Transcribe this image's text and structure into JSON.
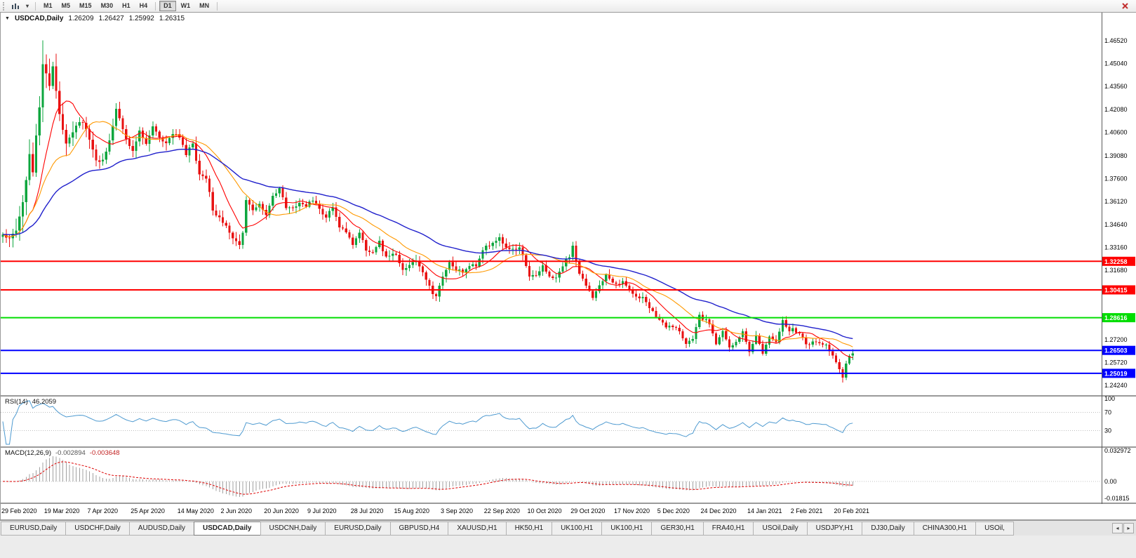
{
  "toolbar": {
    "timeframes": [
      "M1",
      "M5",
      "M15",
      "M30",
      "H1",
      "H4",
      "D1",
      "W1",
      "MN"
    ],
    "active_timeframe": "D1"
  },
  "icons": {
    "dropdown_caret": "▾",
    "tab_scroll_left": "◂",
    "tab_scroll_right": "▸",
    "title_marker": "▼"
  },
  "title": {
    "symbol": "USDCAD,Daily",
    "open": "1.26209",
    "high": "1.26427",
    "low": "1.25992",
    "close": "1.26315"
  },
  "indicators": {
    "rsi": {
      "name": "RSI(14)",
      "value": "46.2059",
      "period": 14,
      "axis_labels": [
        "100",
        "70",
        "30"
      ],
      "line_color": "#4e9ad0"
    },
    "macd": {
      "name": "MACD(12,26,9)",
      "value": "-0.002894",
      "signal_value": "-0.003648",
      "fast": 12,
      "slow": 26,
      "signal": 9,
      "axis_labels": [
        "0.032972",
        "0.00",
        "-0.01815"
      ],
      "histogram_color": "#a0a0a0",
      "signal_color": "#dd0000"
    }
  },
  "tabs": {
    "items": [
      "EURUSD,Daily",
      "USDCHF,Daily",
      "AUDUSD,Daily",
      "USDCAD,Daily",
      "USDCNH,Daily",
      "EURUSD,Daily",
      "GBPUSD,H4",
      "XAUUSD,H1",
      "HK50,H1",
      "UK100,H1",
      "UK100,H1",
      "GER30,H1",
      "FRA40,H1",
      "USOil,Daily",
      "USDJPY,H1",
      "DJ30,Daily",
      "CHINA300,H1",
      "USOil,"
    ],
    "active_index": 3
  },
  "chart_data": {
    "type": "candlestick",
    "symbol": "USDCAD",
    "timeframe": "Daily",
    "bars": 256,
    "price_axis": {
      "ticks": [
        "1.46520",
        "1.45040",
        "1.43560",
        "1.42080",
        "1.40600",
        "1.39080",
        "1.37600",
        "1.36120",
        "1.34640",
        "1.33160",
        "1.31680",
        "1.27200",
        "1.25720",
        "1.24240"
      ],
      "top_price": 1.48335,
      "bottom_price": 1.23608
    },
    "levels": [
      {
        "price": 1.32258,
        "label": "1.32258",
        "color": "#ff0000",
        "width": 2
      },
      {
        "price": 1.30415,
        "label": "1.30415",
        "color": "#ff0000",
        "width": 2
      },
      {
        "price": 1.28616,
        "label": "1.28616",
        "color": "#00dd00",
        "width": 2
      },
      {
        "price": 1.26503,
        "label": "1.26503",
        "color": "#0000ff",
        "width": 2
      },
      {
        "price": 1.25019,
        "label": "1.25019",
        "color": "#0000ff",
        "width": 2
      }
    ],
    "date_labels": [
      {
        "text": "29 Feb 2020",
        "bar": 0
      },
      {
        "text": "19 Mar 2020",
        "bar": 13
      },
      {
        "text": "7 Apr 2020",
        "bar": 26
      },
      {
        "text": "25 Apr 2020",
        "bar": 39
      },
      {
        "text": "14 May 2020",
        "bar": 53
      },
      {
        "text": "2 Jun 2020",
        "bar": 66
      },
      {
        "text": "20 Jun 2020",
        "bar": 79
      },
      {
        "text": "9 Jul 2020",
        "bar": 92
      },
      {
        "text": "28 Jul 2020",
        "bar": 105
      },
      {
        "text": "15 Aug 2020",
        "bar": 118
      },
      {
        "text": "3 Sep 2020",
        "bar": 132
      },
      {
        "text": "22 Sep 2020",
        "bar": 145
      },
      {
        "text": "10 Oct 2020",
        "bar": 158
      },
      {
        "text": "29 Oct 2020",
        "bar": 171
      },
      {
        "text": "17 Nov 2020",
        "bar": 184
      },
      {
        "text": "5 Dec 2020",
        "bar": 197
      },
      {
        "text": "24 Dec 2020",
        "bar": 210
      },
      {
        "text": "14 Jan 2021",
        "bar": 224
      },
      {
        "text": "2 Feb 2021",
        "bar": 237
      },
      {
        "text": "20 Feb 2021",
        "bar": 250
      }
    ],
    "close_anchors": [
      [
        0,
        1.34
      ],
      [
        2,
        1.337
      ],
      [
        4,
        1.343
      ],
      [
        6,
        1.361
      ],
      [
        7,
        1.375
      ],
      [
        8,
        1.392
      ],
      [
        9,
        1.38
      ],
      [
        10,
        1.403
      ],
      [
        11,
        1.422
      ],
      [
        12,
        1.45
      ],
      [
        13,
        1.445
      ],
      [
        14,
        1.436
      ],
      [
        15,
        1.448
      ],
      [
        17,
        1.418
      ],
      [
        19,
        1.399
      ],
      [
        21,
        1.406
      ],
      [
        23,
        1.4135
      ],
      [
        25,
        1.409
      ],
      [
        26,
        1.401
      ],
      [
        28,
        1.387
      ],
      [
        30,
        1.389
      ],
      [
        32,
        1.4
      ],
      [
        34,
        1.421
      ],
      [
        36,
        1.409
      ],
      [
        38,
        1.396
      ],
      [
        39,
        1.394
      ],
      [
        41,
        1.407
      ],
      [
        43,
        1.398
      ],
      [
        45,
        1.41
      ],
      [
        47,
        1.403
      ],
      [
        49,
        1.398
      ],
      [
        51,
        1.406
      ],
      [
        53,
        1.403
      ],
      [
        55,
        1.392
      ],
      [
        57,
        1.399
      ],
      [
        59,
        1.378
      ],
      [
        61,
        1.377
      ],
      [
        63,
        1.356
      ],
      [
        65,
        1.35
      ],
      [
        66,
        1.348
      ],
      [
        68,
        1.342
      ],
      [
        70,
        1.335
      ],
      [
        71,
        1.334
      ],
      [
        72,
        1.341
      ],
      [
        73,
        1.362
      ],
      [
        75,
        1.355
      ],
      [
        77,
        1.36
      ],
      [
        79,
        1.353
      ],
      [
        81,
        1.364
      ],
      [
        83,
        1.369
      ],
      [
        85,
        1.358
      ],
      [
        87,
        1.357
      ],
      [
        89,
        1.361
      ],
      [
        91,
        1.359
      ],
      [
        93,
        1.362
      ],
      [
        95,
        1.356
      ],
      [
        97,
        1.351
      ],
      [
        99,
        1.358
      ],
      [
        101,
        1.345
      ],
      [
        103,
        1.341
      ],
      [
        105,
        1.334
      ],
      [
        107,
        1.341
      ],
      [
        109,
        1.33
      ],
      [
        111,
        1.329
      ],
      [
        113,
        1.335
      ],
      [
        115,
        1.325
      ],
      [
        117,
        1.327
      ],
      [
        118,
        1.326
      ],
      [
        120,
        1.318
      ],
      [
        122,
        1.32
      ],
      [
        124,
        1.322
      ],
      [
        126,
        1.315
      ],
      [
        128,
        1.308
      ],
      [
        129,
        1.302
      ],
      [
        130,
        1.3005
      ],
      [
        131,
        1.308
      ],
      [
        132,
        1.313
      ],
      [
        134,
        1.323
      ],
      [
        136,
        1.317
      ],
      [
        138,
        1.316
      ],
      [
        140,
        1.32
      ],
      [
        142,
        1.32
      ],
      [
        144,
        1.329
      ],
      [
        145,
        1.333
      ],
      [
        147,
        1.334
      ],
      [
        149,
        1.338
      ],
      [
        151,
        1.332
      ],
      [
        153,
        1.33
      ],
      [
        155,
        1.332
      ],
      [
        157,
        1.319
      ],
      [
        158,
        1.312
      ],
      [
        160,
        1.314
      ],
      [
        162,
        1.319
      ],
      [
        164,
        1.312
      ],
      [
        166,
        1.313
      ],
      [
        168,
        1.32
      ],
      [
        170,
        1.326
      ],
      [
        171,
        1.332
      ],
      [
        173,
        1.315
      ],
      [
        175,
        1.306
      ],
      [
        177,
        1.299
      ],
      [
        179,
        1.307
      ],
      [
        181,
        1.314
      ],
      [
        183,
        1.308
      ],
      [
        184,
        1.308
      ],
      [
        186,
        1.309
      ],
      [
        188,
        1.305
      ],
      [
        190,
        1.3
      ],
      [
        192,
        1.299
      ],
      [
        194,
        1.293
      ],
      [
        196,
        1.286
      ],
      [
        197,
        1.284
      ],
      [
        199,
        1.28
      ],
      [
        201,
        1.281
      ],
      [
        203,
        1.277
      ],
      [
        205,
        1.27
      ],
      [
        207,
        1.273
      ],
      [
        209,
        1.287
      ],
      [
        210,
        1.285
      ],
      [
        212,
        1.283
      ],
      [
        214,
        1.27
      ],
      [
        216,
        1.278
      ],
      [
        218,
        1.268
      ],
      [
        220,
        1.27
      ],
      [
        222,
        1.277
      ],
      [
        224,
        1.263
      ],
      [
        226,
        1.275
      ],
      [
        228,
        1.263
      ],
      [
        230,
        1.273
      ],
      [
        232,
        1.27
      ],
      [
        234,
        1.284
      ],
      [
        236,
        1.278
      ],
      [
        237,
        1.279
      ],
      [
        239,
        1.275
      ],
      [
        241,
        1.269
      ],
      [
        243,
        1.27
      ],
      [
        245,
        1.269
      ],
      [
        247,
        1.268
      ],
      [
        249,
        1.261
      ],
      [
        250,
        1.258
      ],
      [
        251,
        1.253
      ],
      [
        252,
        1.247
      ],
      [
        253,
        1.257
      ],
      [
        254,
        1.262
      ],
      [
        255,
        1.26315
      ]
    ],
    "spikes": [
      {
        "bar": 12,
        "high": 1.4655
      },
      {
        "bar": 130,
        "low": 1.2996
      },
      {
        "bar": 252,
        "low": 1.2443
      }
    ],
    "volatility": [
      [
        0,
        0.0045
      ],
      [
        5,
        0.011
      ],
      [
        18,
        0.009
      ],
      [
        25,
        0.006
      ],
      [
        60,
        0.0045
      ],
      [
        130,
        0.0038
      ],
      [
        200,
        0.0032
      ],
      [
        255,
        0.003
      ]
    ],
    "ma": [
      {
        "name": "ma-fast-red",
        "period": 10,
        "type": "sma",
        "color": "#ff0000",
        "width": 1.1
      },
      {
        "name": "ma-mid-orange",
        "period": 21,
        "type": "sma",
        "color": "#ff9900",
        "width": 1.1
      },
      {
        "name": "ma-slow-blue",
        "period": 50,
        "type": "ema",
        "color": "#2020cc",
        "width": 1.4
      }
    ],
    "candle_up_color": "#0da63e",
    "candle_down_color": "#e81212"
  }
}
